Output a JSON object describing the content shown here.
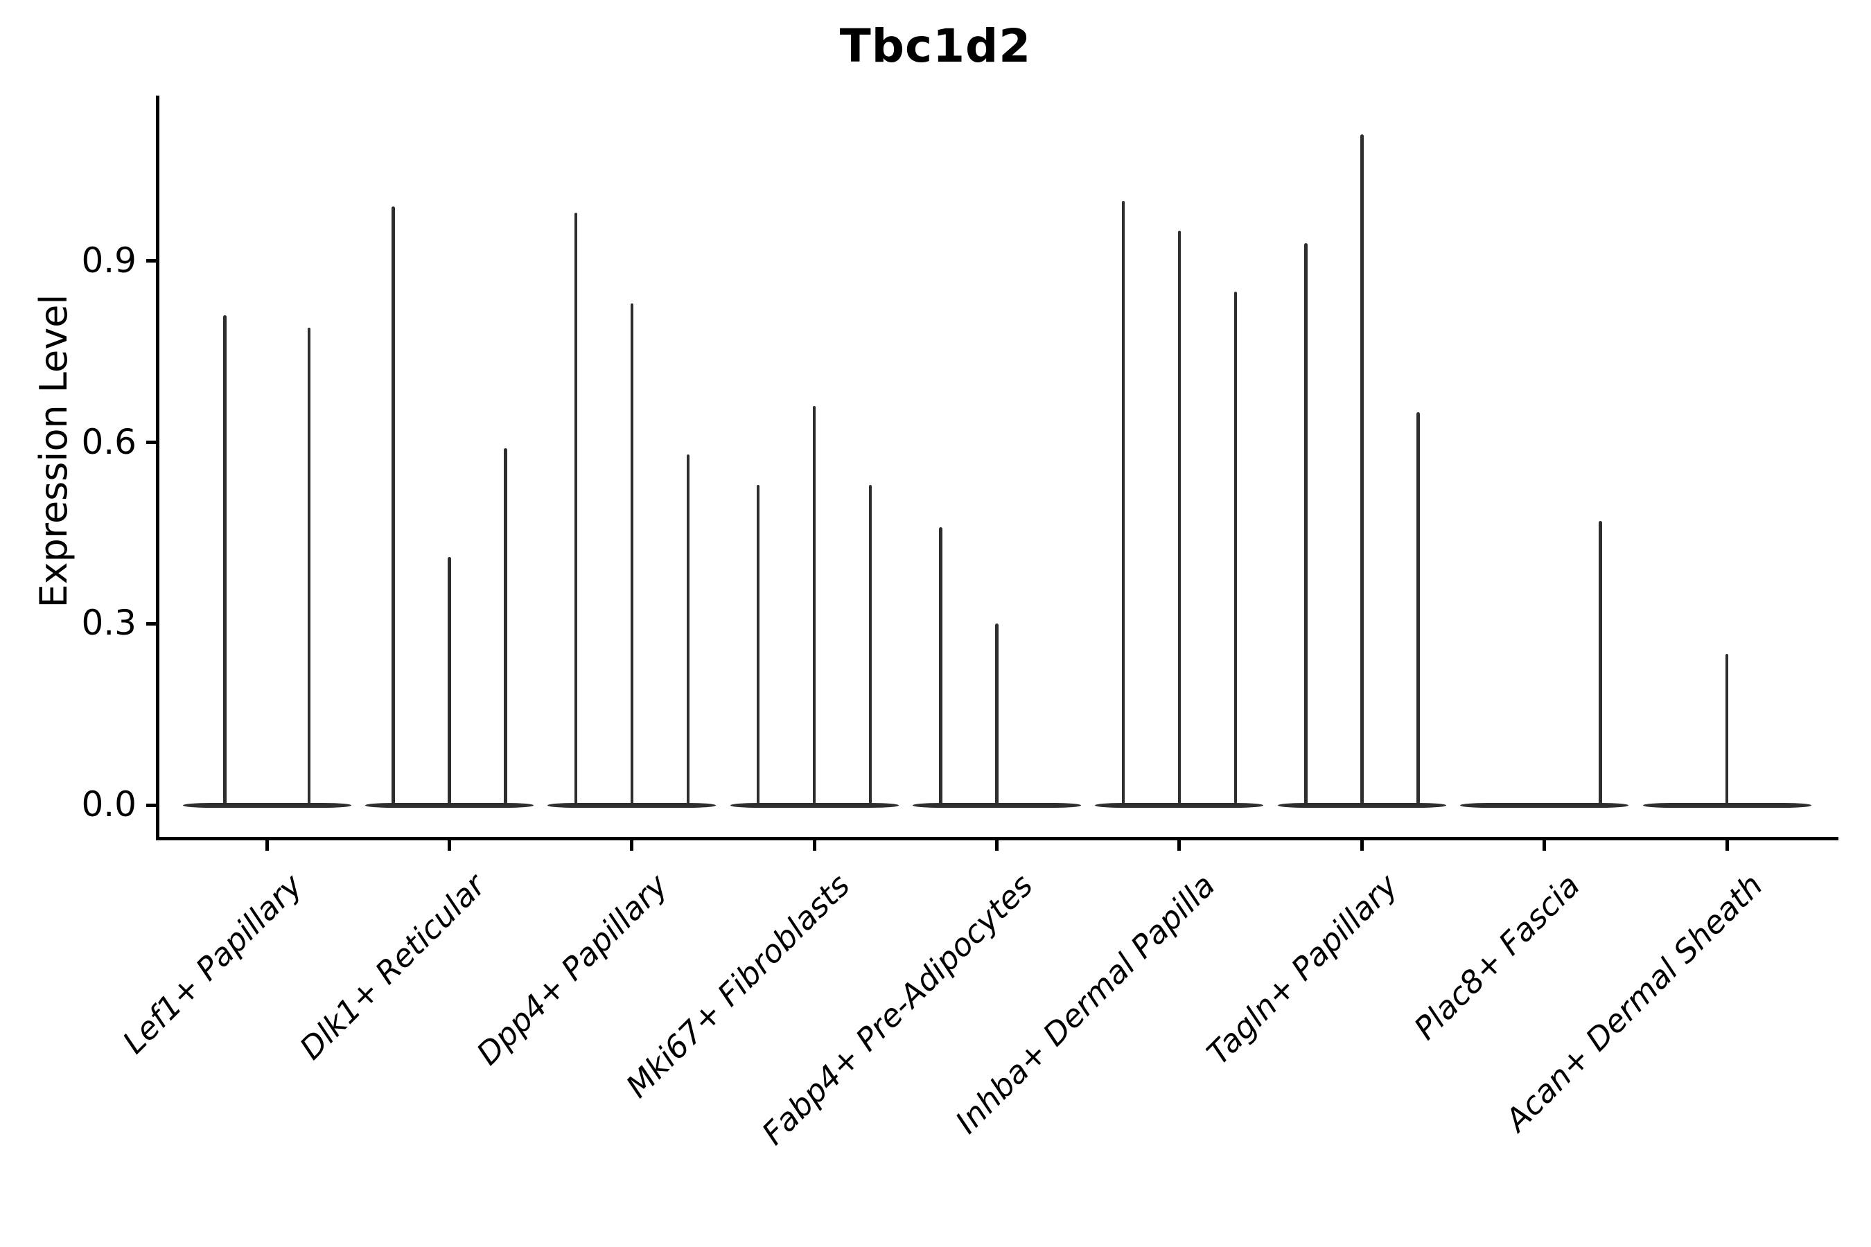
{
  "title": "Tbc1d2",
  "ylabel": "Expression Level",
  "colors": {
    "violin": "#2e2e2e",
    "axis": "#000000",
    "background": "#ffffff"
  },
  "chart_data": {
    "type": "violin",
    "title": "Tbc1d2",
    "xlabel": "",
    "ylabel": "Expression Level",
    "yticks": [
      "0.0",
      "0.3",
      "0.6",
      "0.9"
    ],
    "ytick_values": [
      0.0,
      0.3,
      0.6,
      0.9
    ],
    "ylim": [
      -0.06,
      1.17
    ],
    "grid": false,
    "legend": "none",
    "note": "Each cluster shows flat zero-density violin bodies with thin spikes reaching the listed maximum expression values",
    "categories": [
      {
        "label": "Lef1+ Papillary",
        "violins": [
          0.81,
          0.79
        ]
      },
      {
        "label": "Dlk1+ Reticular",
        "violins": [
          0.99,
          0.41,
          0.59
        ]
      },
      {
        "label": "Dpp4+ Papillary",
        "violins": [
          0.98,
          0.83,
          0.58
        ]
      },
      {
        "label": "Mki67+ Fibroblasts",
        "violins": [
          0.53,
          0.66,
          0.53
        ]
      },
      {
        "label": "Fabp4+ Pre-Adipocytes",
        "violins": [
          0.46,
          0.3,
          0.0
        ]
      },
      {
        "label": "Inhba+ Dermal Papilla",
        "violins": [
          1.0,
          0.95,
          0.85
        ]
      },
      {
        "label": "Tagln+ Papillary",
        "violins": [
          0.93,
          1.11,
          0.65
        ]
      },
      {
        "label": "Plac8+ Fascia",
        "violins": [
          0.0,
          0.0,
          0.47
        ]
      },
      {
        "label": "Acan+ Dermal Sheath",
        "violins": [
          0.0,
          0.25,
          0.0
        ]
      }
    ]
  }
}
